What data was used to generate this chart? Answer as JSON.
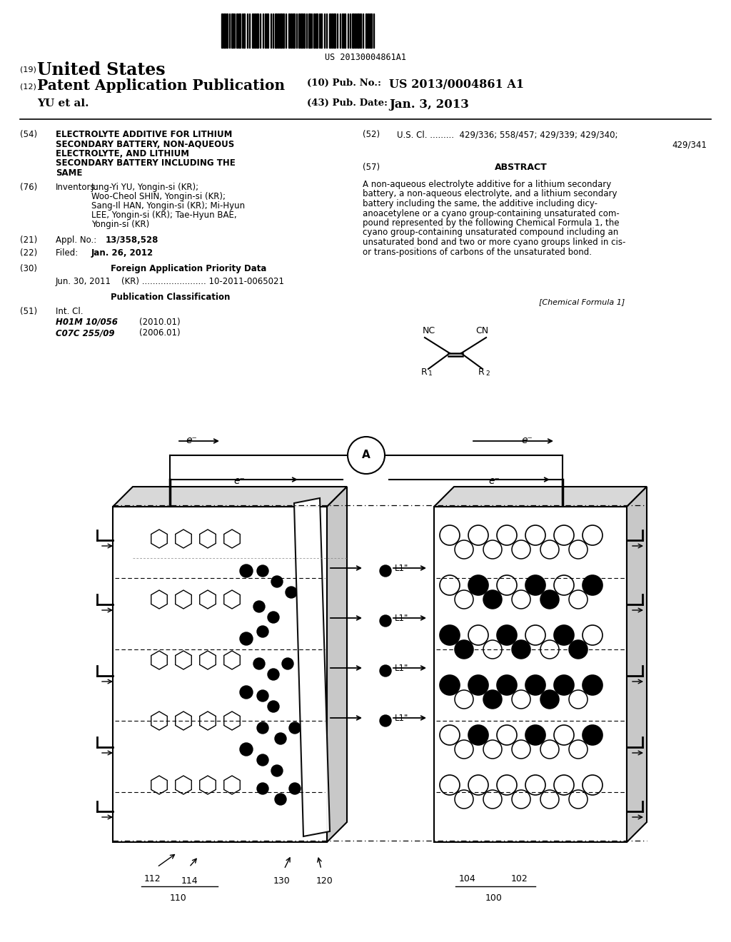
{
  "barcode_text": "US 20130004861A1",
  "us_title": "United States",
  "pat_app": "Patent Application Publication",
  "pub_no": "US 2013/0004861 A1",
  "author": "YU et al.",
  "pub_date": "Jan. 3, 2013",
  "title_text": "ELECTROLYTE ADDITIVE FOR LITHIUM\nSECONDARY BATTERY, NON-AQUEOUS\nELECTROLYTE, AND LITHIUM\nSECONDARY BATTERY INCLUDING THE\nSAME",
  "inventors_text": "Jung-Yi YU, Yongin-si (KR);\nWoo-Cheol SHIN, Yongin-si (KR);\nSang-Il HAN, Yongin-si (KR); Mi-Hyun\nLEE, Yongin-si (KR); Tae-Hyun BAE,\nYongin-si (KR)",
  "abstract_text": "A non-aqueous electrolyte additive for a lithium secondary\nbattery, a non-aqueous electrolyte, and a lithium secondary\nbattery including the same, the additive including dicy-\nanoacetylene or a cyano group-containing unsaturated com-\npound represented by the following Chemical Formula 1, the\ncyano group-containing unsaturated compound including an\nunsaturated bond and two or more cyano groups linked in cis-\nor trans-positions of carbons of the unsaturated bond.",
  "bg_color": "#ffffff"
}
